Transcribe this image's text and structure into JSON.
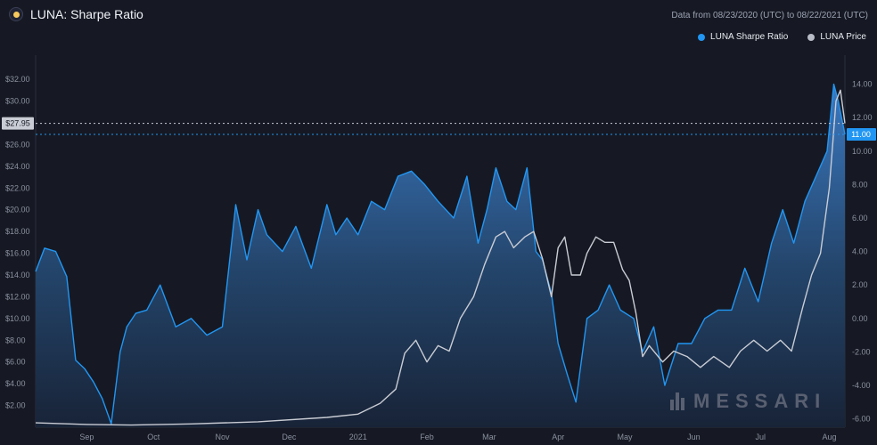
{
  "header": {
    "title": "LUNA: Sharpe Ratio",
    "date_range": "Data from 08/23/2020 (UTC) to 08/22/2021 (UTC)"
  },
  "legend": [
    {
      "label": "LUNA Sharpe Ratio",
      "color": "#2196f3"
    },
    {
      "label": "LUNA Price",
      "color": "#b8bcc6"
    }
  ],
  "watermark": "MESSARI",
  "colors": {
    "sharpe_line": "#2196f3",
    "price_line": "#c9ccd4",
    "background": "#161923"
  },
  "chart_data": {
    "type": "area",
    "x_axis": {
      "tick_labels": [
        "Sep",
        "Oct",
        "Nov",
        "Dec",
        "2021",
        "Feb",
        "Mar",
        "Apr",
        "May",
        "Jun",
        "Jul",
        "Aug"
      ],
      "start_date": "2020-08-23",
      "end_date": "2021-08-22"
    },
    "left_axis": {
      "series": "LUNA Price",
      "ticks": [
        "$2.00",
        "$4.00",
        "$6.00",
        "$8.00",
        "$10.00",
        "$12.00",
        "$14.00",
        "$16.00",
        "$18.00",
        "$20.00",
        "$22.00",
        "$24.00",
        "$26.00",
        "$28.00",
        "$30.00",
        "$32.00"
      ],
      "range": [
        0,
        33.4
      ],
      "current_value_label": "$27.95",
      "current_value": 27.95
    },
    "right_axis": {
      "series": "LUNA Sharpe Ratio",
      "ticks": [
        "-6.00",
        "-4.00",
        "-2.00",
        "0.00",
        "2.00",
        "4.00",
        "6.00",
        "8.00",
        "10.00",
        "12.00",
        "14.00"
      ],
      "range": [
        -6.5,
        15.2
      ],
      "current_value_label": "11.00",
      "current_value": 11.0
    },
    "series": [
      {
        "name": "LUNA Sharpe Ratio",
        "axis": "right",
        "dates": [
          "2020-08-23",
          "2020-08-27",
          "2020-09-01",
          "2020-09-06",
          "2020-09-10",
          "2020-09-14",
          "2020-09-18",
          "2020-09-22",
          "2020-09-26",
          "2020-09-30",
          "2020-10-03",
          "2020-10-07",
          "2020-10-12",
          "2020-10-18",
          "2020-10-25",
          "2020-11-01",
          "2020-11-08",
          "2020-11-15",
          "2020-11-21",
          "2020-11-26",
          "2020-12-01",
          "2020-12-05",
          "2020-12-12",
          "2020-12-18",
          "2020-12-25",
          "2021-01-01",
          "2021-01-05",
          "2021-01-10",
          "2021-01-15",
          "2021-01-21",
          "2021-01-27",
          "2021-02-02",
          "2021-02-08",
          "2021-02-14",
          "2021-02-20",
          "2021-02-27",
          "2021-03-05",
          "2021-03-10",
          "2021-03-14",
          "2021-03-18",
          "2021-03-23",
          "2021-03-27",
          "2021-04-01",
          "2021-04-05",
          "2021-04-08",
          "2021-04-12",
          "2021-04-15",
          "2021-04-19",
          "2021-04-23",
          "2021-04-28",
          "2021-05-03",
          "2021-05-08",
          "2021-05-13",
          "2021-05-19",
          "2021-05-23",
          "2021-05-28",
          "2021-06-02",
          "2021-06-08",
          "2021-06-14",
          "2021-06-20",
          "2021-06-26",
          "2021-07-02",
          "2021-07-08",
          "2021-07-14",
          "2021-07-20",
          "2021-07-25",
          "2021-07-30",
          "2021-08-04",
          "2021-08-09",
          "2021-08-14",
          "2021-08-17",
          "2021-08-19",
          "2021-08-22"
        ],
        "values": [
          2.8,
          4.2,
          4.0,
          2.5,
          -2.5,
          -3.0,
          -3.8,
          -4.8,
          -6.3,
          -2.0,
          -0.5,
          0.3,
          0.5,
          2.0,
          -0.5,
          0.0,
          -1.0,
          -0.5,
          6.8,
          3.5,
          6.5,
          5.0,
          4.0,
          5.5,
          3.0,
          6.8,
          5.0,
          6.0,
          5.0,
          7.0,
          6.5,
          8.5,
          8.8,
          8.0,
          7.0,
          6.0,
          8.5,
          4.5,
          6.5,
          9.0,
          7.0,
          6.5,
          9.0,
          4.0,
          3.5,
          1.5,
          -1.5,
          -3.3,
          -5.0,
          0.0,
          0.5,
          2.0,
          0.5,
          0.0,
          -2.0,
          -0.5,
          -4.0,
          -1.5,
          -1.5,
          0.0,
          0.5,
          0.5,
          3.0,
          1.0,
          4.5,
          6.5,
          4.5,
          7.0,
          8.5,
          10.0,
          14.0,
          13.0,
          11.0
        ]
      },
      {
        "name": "LUNA Price",
        "axis": "left",
        "dates": [
          "2020-08-23",
          "2020-09-15",
          "2020-10-05",
          "2020-11-01",
          "2020-12-01",
          "2021-01-01",
          "2021-01-15",
          "2021-01-25",
          "2021-02-01",
          "2021-02-05",
          "2021-02-10",
          "2021-02-15",
          "2021-02-20",
          "2021-02-25",
          "2021-03-02",
          "2021-03-08",
          "2021-03-13",
          "2021-03-18",
          "2021-03-22",
          "2021-03-26",
          "2021-03-31",
          "2021-04-04",
          "2021-04-08",
          "2021-04-12",
          "2021-04-15",
          "2021-04-18",
          "2021-04-21",
          "2021-04-25",
          "2021-04-28",
          "2021-05-02",
          "2021-05-06",
          "2021-05-10",
          "2021-05-14",
          "2021-05-17",
          "2021-05-20",
          "2021-05-23",
          "2021-05-26",
          "2021-06-01",
          "2021-06-06",
          "2021-06-12",
          "2021-06-18",
          "2021-06-24",
          "2021-07-01",
          "2021-07-06",
          "2021-07-12",
          "2021-07-18",
          "2021-07-24",
          "2021-07-29",
          "2021-08-03",
          "2021-08-07",
          "2021-08-11",
          "2021-08-15",
          "2021-08-18",
          "2021-08-20",
          "2021-08-22"
        ],
        "values": [
          0.4,
          0.25,
          0.2,
          0.3,
          0.5,
          0.9,
          1.2,
          2.2,
          3.5,
          6.8,
          8.0,
          6.0,
          7.5,
          7.0,
          10.0,
          12.0,
          15.0,
          17.5,
          18.0,
          16.5,
          17.5,
          18.0,
          15.5,
          12.0,
          16.5,
          17.5,
          14.0,
          14.0,
          16.0,
          17.5,
          17.0,
          17.0,
          14.5,
          13.5,
          10.5,
          6.5,
          7.5,
          6.0,
          7.0,
          6.5,
          5.5,
          6.5,
          5.5,
          7.0,
          8.0,
          7.0,
          8.0,
          7.0,
          11.0,
          14.0,
          16.0,
          22.0,
          30.0,
          31.0,
          27.95
        ]
      }
    ]
  }
}
